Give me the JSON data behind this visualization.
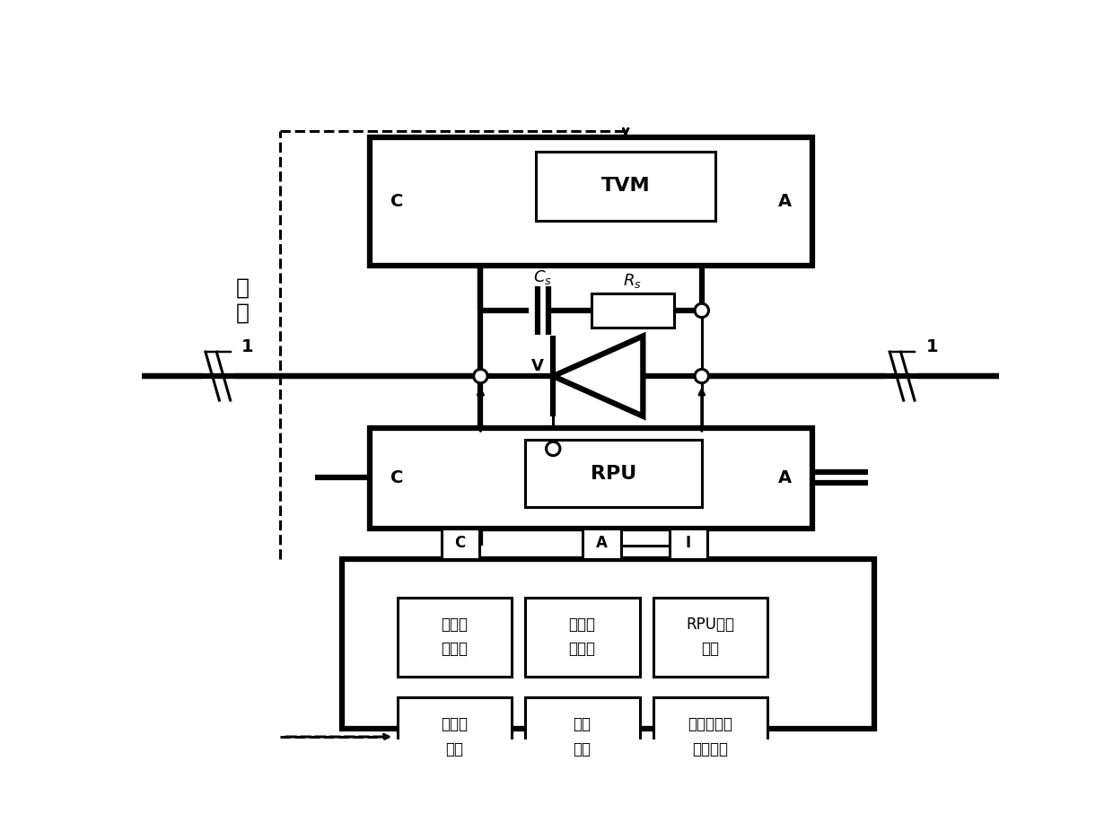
{
  "bg": "#ffffff",
  "lc": "#000000",
  "lw": 2.2,
  "lwt": 4.5,
  "fig_w": 12.4,
  "fig_h": 9.26,
  "texts": {
    "guang_xian": "光\n纤",
    "TVM": "TVM",
    "RPU": "RPU",
    "C": "C",
    "A": "A",
    "Cs": "$C_s$",
    "Rs": "$R_s$",
    "V": "V",
    "I": "I",
    "box1a": "工频电",
    "box1b": "源单元",
    "box2a": "阻容测",
    "box2b": "量单元",
    "box3a": "RPU检测",
    "box3b": "单元",
    "box4a": "光接收",
    "box4b": "单元",
    "box5a": "控制",
    "box5b": "单元",
    "box6a": "数据设置及",
    "box6b": "显示单元",
    "one": "1"
  }
}
